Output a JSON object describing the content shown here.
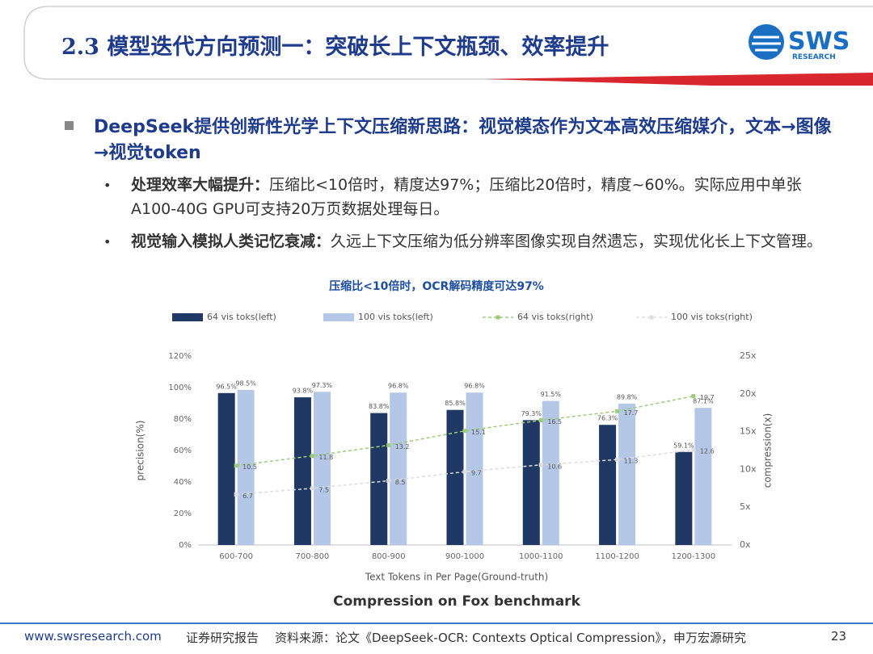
{
  "header": {
    "title": "2.3 模型迭代方向预测一：突破长上下文瓶颈、效率提升",
    "logo": "SWS",
    "logo_sub": "RESEARCH"
  },
  "bullets": {
    "main": "DeepSeek提供创新性光学上下文压缩新思路：视觉模态作为文本高效压缩媒介，文本→图像→视觉token",
    "items": [
      {
        "bold": "处理效率大幅提升：",
        "text": "压缩比<10倍时，精度达97%；压缩比20倍时，精度~60%。实际应用中单张A100-40G GPU可支持20万页数据处理每日。"
      },
      {
        "bold": "视觉输入模拟人类记忆衰减：",
        "text": "久远上下文压缩为低分辨率图像实现自然遗忘，实现优化长上下文管理。"
      }
    ]
  },
  "chart_data": {
    "type": "bar_line",
    "caption": "压缩比<10倍时，OCR解码精度可达97%",
    "title": "Compression on Fox benchmark",
    "x_label": "Text Tokens in Per Page(Ground-truth)",
    "y_label": "precision(%)",
    "y2_label": "compression(x)",
    "categories": [
      "600-700",
      "700-800",
      "800-900",
      "900-1000",
      "1000-1100",
      "1100-1200",
      "1200-1300"
    ],
    "series": [
      {
        "name": "64 vis toks(left)",
        "type": "bar",
        "color": "#1f3864",
        "values": [
          96.5,
          93.8,
          83.8,
          85.8,
          79.3,
          76.3,
          59.1
        ],
        "value_labels": [
          "96.5%",
          "93.8%",
          "83.8%",
          "85.8%",
          "79.3%",
          "76.3%",
          "59.1%"
        ]
      },
      {
        "name": "100 vis toks(left)",
        "type": "bar",
        "color": "#b4c7e7",
        "values": [
          98.5,
          97.3,
          96.8,
          96.8,
          91.5,
          89.8,
          87.1
        ],
        "value_labels": [
          "98.5%",
          "97.3%",
          "96.8%",
          "96.8%",
          "91.5%",
          "89.8%",
          "87.1%"
        ]
      },
      {
        "name": "64 vis toks(right)",
        "type": "line",
        "axis": "y2",
        "color": "#9ccc7a",
        "values": [
          10.5,
          11.8,
          13.2,
          15.1,
          16.5,
          17.7,
          19.7
        ]
      },
      {
        "name": "100 vis toks(right)",
        "type": "line",
        "axis": "y2",
        "color": "#dedede",
        "values": [
          6.7,
          7.5,
          8.5,
          9.7,
          10.6,
          11.3,
          12.6
        ]
      }
    ],
    "ylim": [
      0,
      120
    ],
    "yticks": [
      {
        "value": 0,
        "label": "0%"
      },
      {
        "value": 20,
        "label": "20%"
      },
      {
        "value": 40,
        "label": "40%"
      },
      {
        "value": 60,
        "label": "60%"
      },
      {
        "value": 80,
        "label": "80%"
      },
      {
        "value": 100,
        "label": "100%"
      },
      {
        "value": 120,
        "label": "120%"
      }
    ],
    "y2lim": [
      0,
      25
    ],
    "y2ticks": [
      {
        "value": 0,
        "label": "0x"
      },
      {
        "value": 5,
        "label": "5x"
      },
      {
        "value": 10,
        "label": "10x"
      },
      {
        "value": 15,
        "label": "15x"
      },
      {
        "value": 20,
        "label": "20x"
      },
      {
        "value": 25,
        "label": "25x"
      }
    ],
    "grid": false,
    "legend": "top"
  },
  "footer": {
    "site": "www.swsresearch.com",
    "label": "证券研究报告",
    "source": "资料来源：论文《DeepSeek-OCR: Contexts Optical Compression》，申万宏源研究",
    "page": "23"
  }
}
